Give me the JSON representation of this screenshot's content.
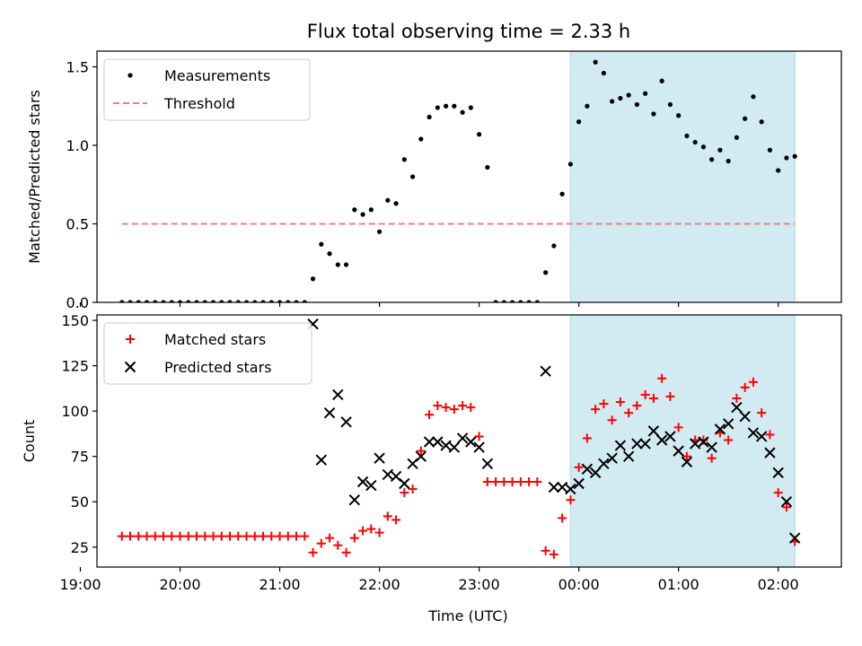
{
  "figure": {
    "title": "Flux total observing time = 2.33 h",
    "shaded_region_color": "#add8e6"
  },
  "chart_data": [
    {
      "type": "scatter",
      "ylabel": "Matched/Predicted stars",
      "ylim": [
        0,
        1.6
      ],
      "yticks": [
        0.0,
        0.5,
        1.0,
        1.5
      ],
      "ytick_labels": [
        "0.0",
        "0.5",
        "1.0",
        "1.5"
      ],
      "xlim": [
        "19:10",
        "02:38"
      ],
      "shaded_x": [
        "23:55",
        "02:10"
      ],
      "legend": {
        "position": "top-left",
        "items": [
          "Measurements",
          "Threshold"
        ]
      },
      "series": [
        {
          "name": "Measurements",
          "color": "#000000",
          "marker": "dot",
          "points": [
            [
              "19:25",
              0
            ],
            [
              "19:30",
              0
            ],
            [
              "19:35",
              0
            ],
            [
              "19:40",
              0
            ],
            [
              "19:45",
              0
            ],
            [
              "19:50",
              0
            ],
            [
              "19:55",
              0
            ],
            [
              "20:00",
              0
            ],
            [
              "20:05",
              0
            ],
            [
              "20:10",
              0
            ],
            [
              "20:15",
              0
            ],
            [
              "20:20",
              0
            ],
            [
              "20:25",
              0
            ],
            [
              "20:30",
              0
            ],
            [
              "20:35",
              0
            ],
            [
              "20:40",
              0
            ],
            [
              "20:45",
              0
            ],
            [
              "20:50",
              0
            ],
            [
              "20:55",
              0
            ],
            [
              "21:00",
              0
            ],
            [
              "21:05",
              0
            ],
            [
              "21:10",
              0
            ],
            [
              "21:15",
              0
            ],
            [
              "21:20",
              0.15
            ],
            [
              "21:25",
              0.37
            ],
            [
              "21:30",
              0.31
            ],
            [
              "21:35",
              0.24
            ],
            [
              "21:40",
              0.24
            ],
            [
              "21:45",
              0.59
            ],
            [
              "21:50",
              0.56
            ],
            [
              "21:55",
              0.59
            ],
            [
              "22:00",
              0.45
            ],
            [
              "22:05",
              0.65
            ],
            [
              "22:10",
              0.63
            ],
            [
              "22:15",
              0.91
            ],
            [
              "22:20",
              0.8
            ],
            [
              "22:25",
              1.04
            ],
            [
              "22:30",
              1.18
            ],
            [
              "22:35",
              1.24
            ],
            [
              "22:40",
              1.25
            ],
            [
              "22:45",
              1.25
            ],
            [
              "22:50",
              1.21
            ],
            [
              "22:55",
              1.24
            ],
            [
              "23:00",
              1.07
            ],
            [
              "23:05",
              0.86
            ],
            [
              "23:10",
              0
            ],
            [
              "23:15",
              0
            ],
            [
              "23:20",
              0
            ],
            [
              "23:25",
              0
            ],
            [
              "23:30",
              0
            ],
            [
              "23:35",
              0
            ],
            [
              "23:40",
              0.19
            ],
            [
              "23:45",
              0.36
            ],
            [
              "23:50",
              0.69
            ],
            [
              "23:55",
              0.88
            ],
            [
              "00:00",
              1.15
            ],
            [
              "00:05",
              1.25
            ],
            [
              "00:10",
              1.53
            ],
            [
              "00:15",
              1.46
            ],
            [
              "00:20",
              1.28
            ],
            [
              "00:25",
              1.3
            ],
            [
              "00:30",
              1.32
            ],
            [
              "00:35",
              1.26
            ],
            [
              "00:40",
              1.33
            ],
            [
              "00:45",
              1.2
            ],
            [
              "00:50",
              1.41
            ],
            [
              "00:55",
              1.26
            ],
            [
              "01:00",
              1.19
            ],
            [
              "01:05",
              1.06
            ],
            [
              "01:10",
              1.02
            ],
            [
              "01:15",
              0.99
            ],
            [
              "01:20",
              0.91
            ],
            [
              "01:25",
              0.97
            ],
            [
              "01:30",
              0.9
            ],
            [
              "01:35",
              1.05
            ],
            [
              "01:40",
              1.17
            ],
            [
              "01:45",
              1.31
            ],
            [
              "01:50",
              1.15
            ],
            [
              "01:55",
              0.97
            ],
            [
              "02:00",
              0.84
            ],
            [
              "02:05",
              0.92
            ],
            [
              "02:10",
              0.93
            ]
          ]
        },
        {
          "name": "Threshold",
          "color": "#f08080",
          "style": "dashed",
          "points": [
            [
              "19:25",
              0.5
            ],
            [
              "02:10",
              0.5
            ]
          ]
        }
      ]
    },
    {
      "type": "scatter",
      "xlabel": "Time (UTC)",
      "ylabel": "Count",
      "ylim": [
        14,
        153
      ],
      "yticks": [
        25,
        50,
        75,
        100,
        125,
        150
      ],
      "ytick_labels": [
        "25",
        "50",
        "75",
        "100",
        "125",
        "150"
      ],
      "xlim": [
        "19:10",
        "02:38"
      ],
      "xticks": [
        "19:00",
        "20:00",
        "21:00",
        "22:00",
        "23:00",
        "00:00",
        "01:00",
        "02:00"
      ],
      "xtick_labels": [
        "19:00",
        "20:00",
        "21:00",
        "22:00",
        "23:00",
        "00:00",
        "01:00",
        "02:00"
      ],
      "shaded_x": [
        "23:55",
        "02:10"
      ],
      "legend": {
        "position": "top-left",
        "items": [
          "Matched stars",
          "Predicted stars"
        ]
      },
      "series": [
        {
          "name": "Matched stars",
          "color": "#ff0000",
          "marker": "plus",
          "points": [
            [
              "19:25",
              31
            ],
            [
              "19:30",
              31
            ],
            [
              "19:35",
              31
            ],
            [
              "19:40",
              31
            ],
            [
              "19:45",
              31
            ],
            [
              "19:50",
              31
            ],
            [
              "19:55",
              31
            ],
            [
              "20:00",
              31
            ],
            [
              "20:05",
              31
            ],
            [
              "20:10",
              31
            ],
            [
              "20:15",
              31
            ],
            [
              "20:20",
              31
            ],
            [
              "20:25",
              31
            ],
            [
              "20:30",
              31
            ],
            [
              "20:35",
              31
            ],
            [
              "20:40",
              31
            ],
            [
              "20:45",
              31
            ],
            [
              "20:50",
              31
            ],
            [
              "20:55",
              31
            ],
            [
              "21:00",
              31
            ],
            [
              "21:05",
              31
            ],
            [
              "21:10",
              31
            ],
            [
              "21:15",
              31
            ],
            [
              "21:20",
              22
            ],
            [
              "21:25",
              27
            ],
            [
              "21:30",
              30
            ],
            [
              "21:35",
              26
            ],
            [
              "21:40",
              22
            ],
            [
              "21:45",
              30
            ],
            [
              "21:50",
              34
            ],
            [
              "21:55",
              35
            ],
            [
              "22:00",
              33
            ],
            [
              "22:05",
              42
            ],
            [
              "22:10",
              40
            ],
            [
              "22:15",
              55
            ],
            [
              "22:20",
              57
            ],
            [
              "22:25",
              78
            ],
            [
              "22:30",
              98
            ],
            [
              "22:35",
              103
            ],
            [
              "22:40",
              102
            ],
            [
              "22:45",
              101
            ],
            [
              "22:50",
              103
            ],
            [
              "22:55",
              102
            ],
            [
              "23:00",
              86
            ],
            [
              "23:05",
              61
            ],
            [
              "23:10",
              61
            ],
            [
              "23:15",
              61
            ],
            [
              "23:20",
              61
            ],
            [
              "23:25",
              61
            ],
            [
              "23:30",
              61
            ],
            [
              "23:35",
              61
            ],
            [
              "23:40",
              23
            ],
            [
              "23:45",
              21
            ],
            [
              "23:50",
              41
            ],
            [
              "23:55",
              51
            ],
            [
              "00:00",
              69
            ],
            [
              "00:05",
              85
            ],
            [
              "00:10",
              101
            ],
            [
              "00:15",
              104
            ],
            [
              "00:20",
              95
            ],
            [
              "00:25",
              105
            ],
            [
              "00:30",
              99
            ],
            [
              "00:35",
              103
            ],
            [
              "00:40",
              109
            ],
            [
              "00:45",
              107
            ],
            [
              "00:50",
              118
            ],
            [
              "00:55",
              108
            ],
            [
              "01:00",
              91
            ],
            [
              "01:05",
              75
            ],
            [
              "01:10",
              84
            ],
            [
              "01:15",
              84
            ],
            [
              "01:20",
              74
            ],
            [
              "01:25",
              88
            ],
            [
              "01:30",
              84
            ],
            [
              "01:35",
              107
            ],
            [
              "01:40",
              113
            ],
            [
              "01:45",
              116
            ],
            [
              "01:50",
              99
            ],
            [
              "01:55",
              87
            ],
            [
              "02:00",
              55
            ],
            [
              "02:05",
              47
            ],
            [
              "02:10",
              28
            ]
          ]
        },
        {
          "name": "Predicted stars",
          "color": "#000000",
          "marker": "x",
          "points": [
            [
              "21:20",
              148
            ],
            [
              "21:25",
              73
            ],
            [
              "21:30",
              99
            ],
            [
              "21:35",
              109
            ],
            [
              "21:40",
              94
            ],
            [
              "21:45",
              51
            ],
            [
              "21:50",
              61
            ],
            [
              "21:55",
              59
            ],
            [
              "22:00",
              74
            ],
            [
              "22:05",
              65
            ],
            [
              "22:10",
              64
            ],
            [
              "22:15",
              60
            ],
            [
              "22:20",
              71
            ],
            [
              "22:25",
              75
            ],
            [
              "22:30",
              83
            ],
            [
              "22:35",
              83
            ],
            [
              "22:40",
              81
            ],
            [
              "22:45",
              80
            ],
            [
              "22:50",
              85
            ],
            [
              "22:55",
              83
            ],
            [
              "23:00",
              80
            ],
            [
              "23:05",
              71
            ],
            [
              "23:40",
              122
            ],
            [
              "23:45",
              58
            ],
            [
              "23:50",
              58
            ],
            [
              "23:55",
              57
            ],
            [
              "00:00",
              60
            ],
            [
              "00:05",
              68
            ],
            [
              "00:10",
              66
            ],
            [
              "00:15",
              71
            ],
            [
              "00:20",
              74
            ],
            [
              "00:25",
              81
            ],
            [
              "00:30",
              75
            ],
            [
              "00:35",
              82
            ],
            [
              "00:40",
              82
            ],
            [
              "00:45",
              89
            ],
            [
              "00:50",
              84
            ],
            [
              "00:55",
              86
            ],
            [
              "01:00",
              78
            ],
            [
              "01:05",
              72
            ],
            [
              "01:10",
              82
            ],
            [
              "01:15",
              83
            ],
            [
              "01:20",
              80
            ],
            [
              "01:25",
              90
            ],
            [
              "01:30",
              93
            ],
            [
              "01:35",
              102
            ],
            [
              "01:40",
              97
            ],
            [
              "01:45",
              88
            ],
            [
              "01:50",
              86
            ],
            [
              "01:55",
              77
            ],
            [
              "02:00",
              66
            ],
            [
              "02:05",
              50
            ],
            [
              "02:10",
              30
            ]
          ]
        }
      ]
    }
  ]
}
